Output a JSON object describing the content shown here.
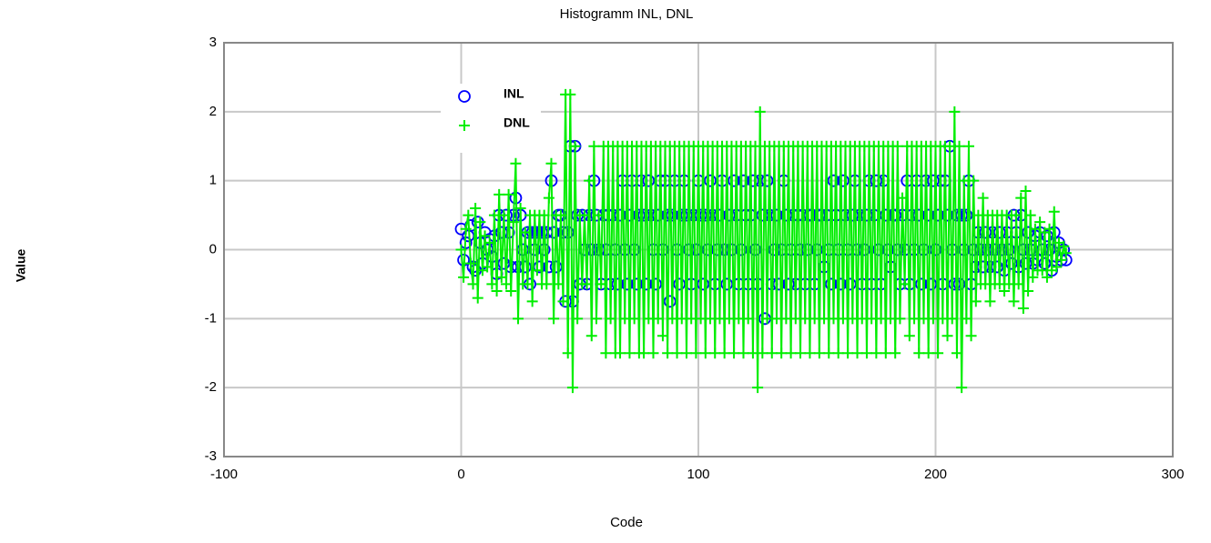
{
  "chart_data": {
    "type": "scatter-line",
    "title": "Histogramm INL, DNL",
    "xlabel": "Code",
    "ylabel": "Value",
    "xlim": [
      -100,
      300
    ],
    "xticks": [
      -100,
      0,
      100,
      200,
      300
    ],
    "ylim": [
      -3,
      3
    ],
    "yticks": [
      -3,
      -2,
      -1,
      0,
      1,
      2,
      3
    ],
    "grid": true,
    "legend": "top-left",
    "x": [
      0,
      1,
      2,
      3,
      4,
      5,
      6,
      7,
      8,
      9,
      10,
      11,
      12,
      13,
      14,
      15,
      16,
      17,
      18,
      19,
      20,
      21,
      22,
      23,
      24,
      25,
      26,
      27,
      28,
      29,
      30,
      31,
      32,
      33,
      34,
      35,
      36,
      37,
      38,
      39,
      40,
      41,
      42,
      43,
      44,
      45,
      46,
      47,
      48,
      49,
      50,
      51,
      52,
      53,
      54,
      55,
      56,
      57,
      58,
      59,
      60,
      61,
      62,
      63,
      64,
      65,
      66,
      67,
      68,
      69,
      70,
      71,
      72,
      73,
      74,
      75,
      76,
      77,
      78,
      79,
      80,
      81,
      82,
      83,
      84,
      85,
      86,
      87,
      88,
      89,
      90,
      91,
      92,
      93,
      94,
      95,
      96,
      97,
      98,
      99,
      100,
      101,
      102,
      103,
      104,
      105,
      106,
      107,
      108,
      109,
      110,
      111,
      112,
      113,
      114,
      115,
      116,
      117,
      118,
      119,
      120,
      121,
      122,
      123,
      124,
      125,
      126,
      127,
      128,
      129,
      130,
      131,
      132,
      133,
      134,
      135,
      136,
      137,
      138,
      139,
      140,
      141,
      142,
      143,
      144,
      145,
      146,
      147,
      148,
      149,
      150,
      151,
      152,
      153,
      154,
      155,
      156,
      157,
      158,
      159,
      160,
      161,
      162,
      163,
      164,
      165,
      166,
      167,
      168,
      169,
      170,
      171,
      172,
      173,
      174,
      175,
      176,
      177,
      178,
      179,
      180,
      181,
      182,
      183,
      184,
      185,
      186,
      187,
      188,
      189,
      190,
      191,
      192,
      193,
      194,
      195,
      196,
      197,
      198,
      199,
      200,
      201,
      202,
      203,
      204,
      205,
      206,
      207,
      208,
      209,
      210,
      211,
      212,
      213,
      214,
      215,
      216,
      217,
      218,
      219,
      220,
      221,
      222,
      223,
      224,
      225,
      226,
      227,
      228,
      229,
      230,
      231,
      232,
      233,
      234,
      235,
      236,
      237,
      238,
      239,
      240,
      241,
      242,
      243,
      244,
      245,
      246,
      247,
      248,
      249,
      250,
      251,
      252,
      253,
      254,
      255
    ],
    "series": [
      {
        "name": "INL",
        "color": "#0000ff",
        "marker": "circle",
        "values": [
          0.3,
          -0.15,
          0.1,
          0.2,
          0.35,
          -0.25,
          -0.3,
          0.4,
          0.1,
          -0.2,
          0.25,
          0,
          0.15,
          -0.1,
          0.2,
          -0.35,
          0.5,
          0.25,
          -0.2,
          0.5,
          0.25,
          -0.25,
          0.5,
          0.75,
          -0.25,
          0.5,
          0,
          -0.25,
          0.25,
          -0.5,
          0.25,
          0,
          0.25,
          -0.25,
          0.25,
          0,
          0.25,
          -0.25,
          1,
          0.25,
          -0.25,
          0.5,
          0.5,
          0.25,
          -0.75,
          0.25,
          1.5,
          -0.75,
          1.5,
          0.5,
          -0.5,
          0.5,
          0,
          -0.5,
          0.5,
          0,
          1,
          0.5,
          0,
          -0.5,
          0.5,
          0,
          0.5,
          -0.5,
          0.5,
          0,
          -0.5,
          0.5,
          1,
          0,
          -0.5,
          0.5,
          1,
          0,
          -0.5,
          0.5,
          1,
          0.5,
          -0.5,
          1,
          0.5,
          0,
          -0.5,
          0.5,
          1,
          0,
          1,
          0.5,
          -0.75,
          0.5,
          1,
          0,
          -0.5,
          0.5,
          1,
          0.5,
          0,
          -0.5,
          0.5,
          0,
          1,
          0.5,
          -0.5,
          0.5,
          0,
          1,
          0.5,
          -0.5,
          0,
          0.5,
          1,
          0,
          -0.5,
          0.5,
          0,
          1,
          0.5,
          -0.5,
          0,
          1,
          0.5,
          -0.5,
          0.5,
          1,
          0,
          -0.5,
          1,
          0.5,
          -1,
          1,
          0.5,
          -0.5,
          0,
          0.5,
          -0.5,
          0,
          1,
          0.5,
          -0.5,
          0,
          0.5,
          -0.5,
          0.5,
          0,
          0.5,
          -0.5,
          0,
          0.5,
          0.5,
          -0.5,
          0,
          0.5,
          0.5,
          -0.25,
          0.5,
          0,
          -0.5,
          1,
          0.5,
          0,
          -0.5,
          1,
          0.5,
          0,
          -0.5,
          0.5,
          1,
          0,
          0.5,
          -0.5,
          0,
          0.5,
          1,
          -0.5,
          0.5,
          1,
          0,
          -0.5,
          1,
          0.5,
          0,
          -0.25,
          0.5,
          0.5,
          0,
          -0.5,
          0.5,
          0,
          1,
          -0.5,
          0.5,
          0,
          1,
          0.5,
          -0.5,
          0,
          1,
          0.5,
          -0.5,
          1,
          0,
          0.5,
          1,
          -0.5,
          1,
          0.5,
          1.5,
          0,
          -0.5,
          0.5,
          -0.5,
          0.5,
          0,
          0.5,
          1,
          -0.5,
          0,
          -0.25,
          0.25,
          0,
          -0.25,
          0.25,
          0,
          -0.25,
          0.25,
          0,
          -0.25,
          0.25,
          0,
          -0.3,
          0.25,
          0,
          -0.2,
          0.5,
          0.25,
          -0.25,
          0.5,
          0,
          -0.2,
          0.25,
          0,
          -0.2,
          0.2,
          -0.15,
          0.25,
          0,
          -0.2,
          0.2,
          0,
          -0.3,
          0.25,
          -0.1,
          0.1,
          -0.15,
          0,
          -0.15
        ]
      },
      {
        "name": "DNL",
        "color": "#00ee00",
        "marker": "plus",
        "values": [
          0,
          -0.4,
          0.3,
          0.5,
          -0.2,
          -0.5,
          0.6,
          -0.7,
          0.4,
          -0.3,
          0.2,
          -0.25,
          0.1,
          -0.5,
          0.5,
          -0.6,
          0.8,
          -0.4,
          0.5,
          -0.5,
          0.8,
          -0.6,
          0.4,
          1.25,
          -1,
          0.6,
          -0.5,
          0.25,
          -0.5,
          0.5,
          -0.75,
          0.5,
          -0.3,
          0.5,
          -0.5,
          0.5,
          -0.5,
          0.75,
          1.25,
          -1,
          0.5,
          -0.5,
          0.5,
          -0.75,
          2.25,
          -1.5,
          2.25,
          -2,
          1.5,
          -1,
          0.5,
          -0.5,
          0.5,
          -0.5,
          1,
          -1.25,
          1.5,
          -1,
          0.5,
          -0.5,
          1.5,
          -1.5,
          1.5,
          -1,
          1.5,
          -1.5,
          1.5,
          -1.5,
          1.5,
          -1,
          1.5,
          -1.5,
          1.5,
          -1,
          1.5,
          -1.5,
          1.5,
          -1.5,
          1.5,
          -1,
          1.5,
          -1.5,
          1.5,
          -1,
          1.5,
          -1.25,
          1.5,
          -1.5,
          1.5,
          -1,
          1.5,
          -1.5,
          1.5,
          -1,
          1.5,
          -1.5,
          1.5,
          -1,
          1.5,
          -1.5,
          1.5,
          -1,
          1.5,
          -1.5,
          1.5,
          -1,
          1.5,
          -1.5,
          1.5,
          -1,
          1.5,
          -1.5,
          1.5,
          -1,
          1.5,
          -1.5,
          1.5,
          -1,
          1.5,
          -1.5,
          1.5,
          -1,
          1.5,
          -1.5,
          1.5,
          -2,
          2,
          -1.5,
          1.5,
          -1,
          1.5,
          -1.5,
          1.5,
          -1,
          1.5,
          -1.5,
          1.5,
          -1,
          1.5,
          -1.5,
          1.5,
          -1,
          1.5,
          -1.5,
          1.5,
          -1,
          1.5,
          -1.5,
          1.5,
          -1,
          1.5,
          -1.5,
          1.5,
          -1,
          1.5,
          -1.5,
          1.5,
          -1,
          1.5,
          -1.5,
          1.5,
          -1,
          1.5,
          -1.5,
          1.5,
          -1,
          1.5,
          -1.5,
          1.5,
          -1,
          1.5,
          -1.5,
          1.5,
          -1,
          1.5,
          -1.5,
          1.5,
          -1,
          1.5,
          -1.5,
          1.5,
          -1,
          1.5,
          -1.5,
          1.5,
          -1,
          0.75,
          -0.5,
          1.5,
          -1.25,
          1.5,
          -1,
          1.5,
          -1.5,
          1.5,
          -1,
          1.5,
          -1.5,
          1.5,
          -1,
          1.5,
          -1.5,
          1.5,
          -1,
          1.5,
          -1.25,
          1.5,
          -1,
          2,
          -1.5,
          1.5,
          -2,
          1,
          -1,
          1.5,
          -1.25,
          1,
          -0.75,
          0.5,
          -0.5,
          0.75,
          -0.5,
          0.5,
          -0.75,
          0.5,
          -0.5,
          0.5,
          -0.5,
          0.5,
          -0.6,
          0.5,
          -0.5,
          0.5,
          -0.75,
          0.5,
          -0.5,
          0.75,
          -0.85,
          0.85,
          -0.6,
          0.5,
          -0.4,
          0.3,
          -0.3,
          0.4,
          -0.3,
          0.25,
          -0.4,
          0.3,
          -0.3,
          0.55,
          -0.25,
          0.1,
          -0.15,
          0.05,
          -0.05
        ]
      }
    ]
  }
}
